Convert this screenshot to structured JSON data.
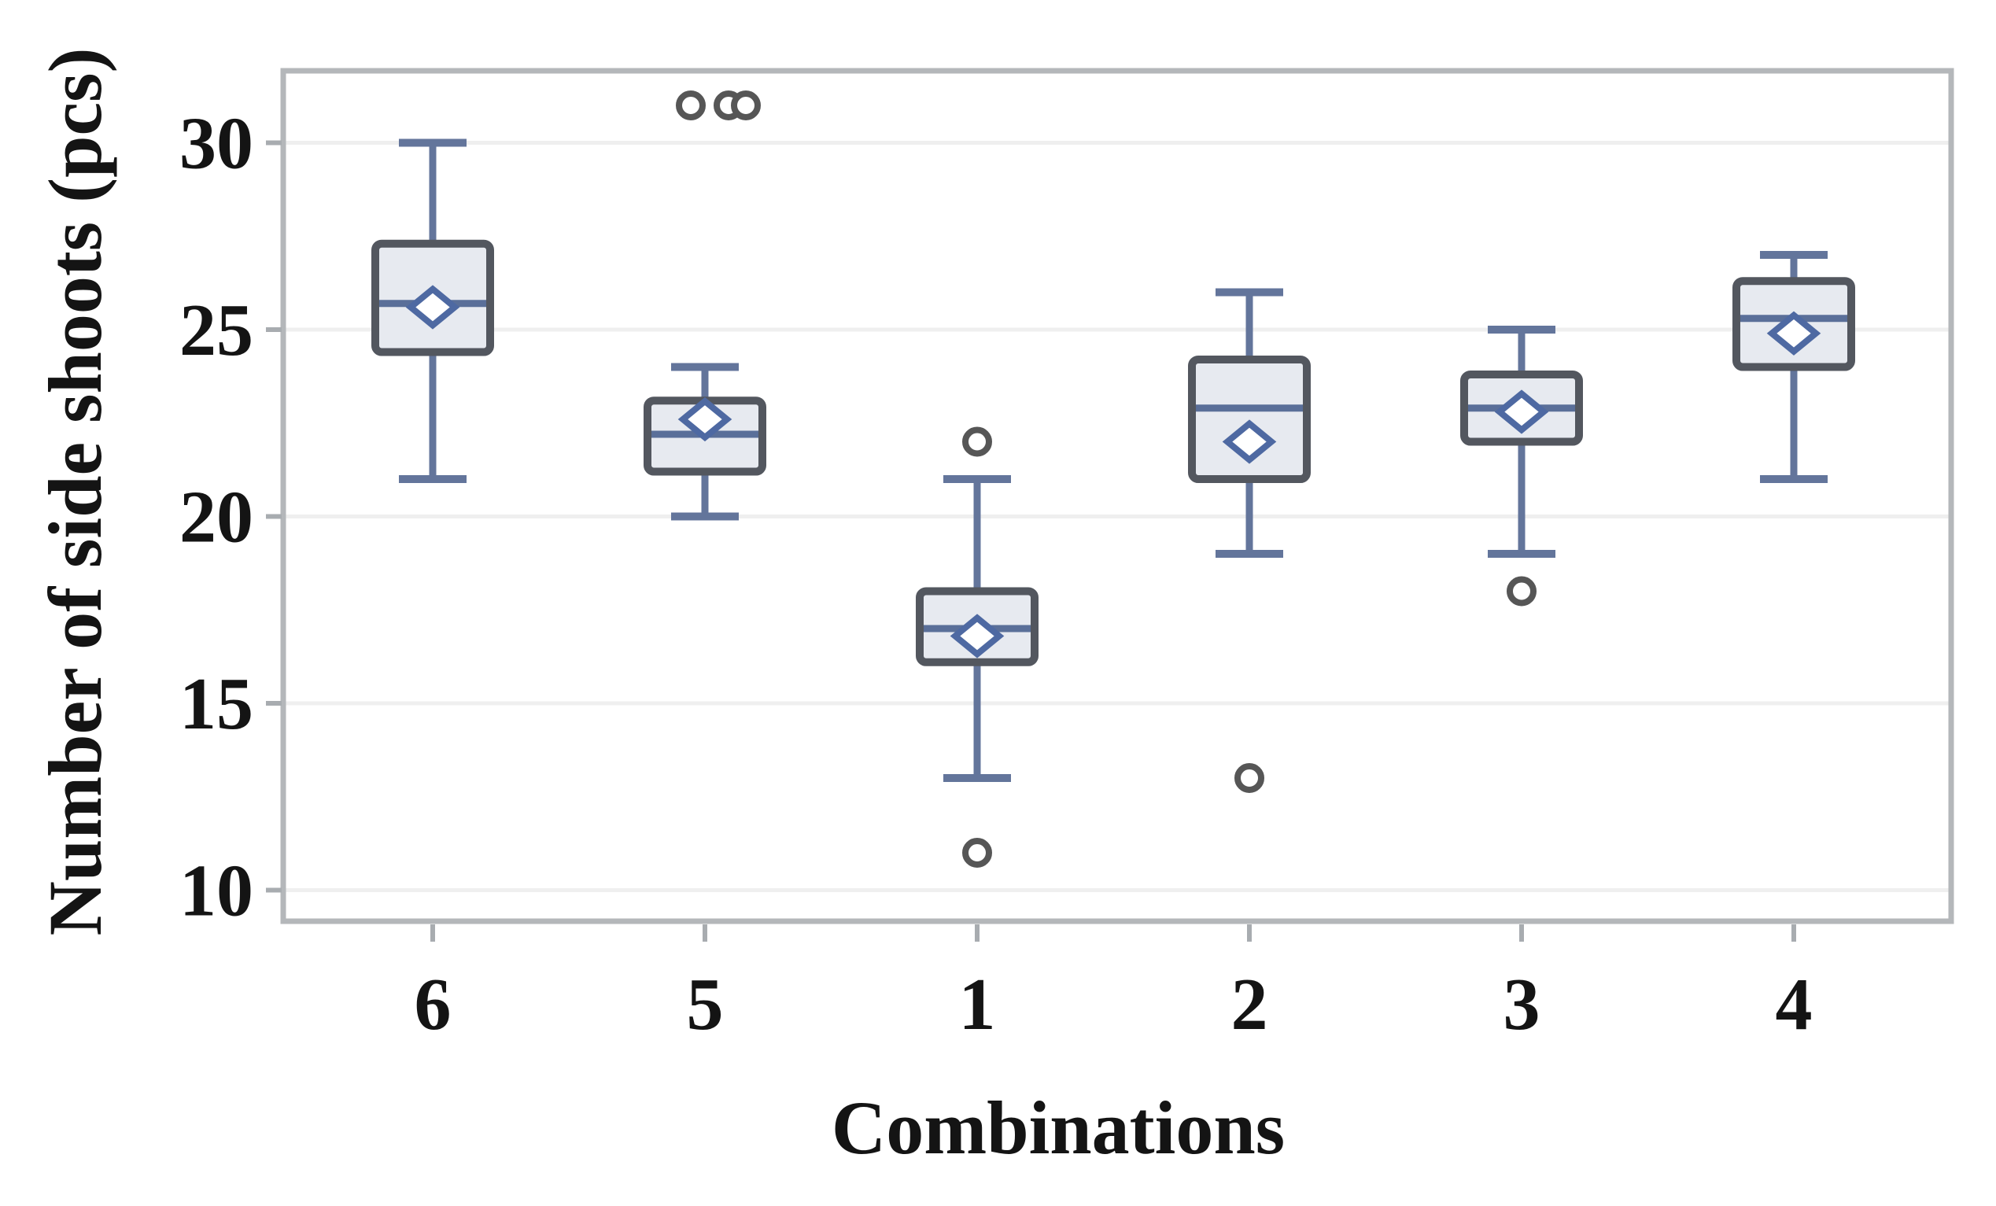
{
  "chart_data": {
    "type": "box",
    "title": "",
    "xlabel": "Combinations",
    "ylabel": "Number of side shoots (pcs)",
    "categories": [
      "6",
      "5",
      "1",
      "2",
      "3",
      "4"
    ],
    "yticks": [
      30,
      25,
      20,
      15,
      10
    ],
    "ylim": [
      9.2,
      31.9
    ],
    "grid": "horizontal",
    "legend": "none",
    "series": [
      {
        "category": "6",
        "whisker_low": 21,
        "q1": 24.4,
        "median": 25.7,
        "mean": 25.6,
        "q3": 27.3,
        "whisker_high": 30,
        "outliers": []
      },
      {
        "category": "5",
        "whisker_low": 20,
        "q1": 21.2,
        "median": 22.2,
        "mean": 22.6,
        "q3": 23.1,
        "whisker_high": 24,
        "outliers": [
          31,
          31,
          31
        ]
      },
      {
        "category": "1",
        "whisker_low": 13,
        "q1": 16.1,
        "median": 17,
        "mean": 16.8,
        "q3": 18,
        "whisker_high": 21,
        "outliers": [
          22,
          11
        ]
      },
      {
        "category": "2",
        "whisker_low": 19,
        "q1": 21,
        "median": 22.9,
        "mean": 22,
        "q3": 24.2,
        "whisker_high": 26,
        "outliers": [
          13
        ]
      },
      {
        "category": "3",
        "whisker_low": 19,
        "q1": 22,
        "median": 22.9,
        "mean": 22.8,
        "q3": 23.8,
        "whisker_high": 25,
        "outliers": [
          18
        ]
      },
      {
        "category": "4",
        "whisker_low": 21,
        "q1": 24,
        "median": 25.3,
        "mean": 24.9,
        "q3": 26.3,
        "whisker_high": 27,
        "outliers": []
      }
    ],
    "marker_semantics": {
      "diamond": "mean value marker",
      "circle": "outlier point"
    },
    "colors": {
      "box_fill": "#e7eaf0",
      "box_border": "#53575f",
      "whisker": "#63759b",
      "median": "#5a6f99",
      "mean_marker": "#4e69a2",
      "mean_marker_fill": "#ffffff",
      "outlier": "#565656",
      "outlier_fill": "#ffffff",
      "gridline": "#efefef",
      "frame": "#b4b7ba",
      "tick": "#a8acb0",
      "text": "#141414",
      "background": "#ffffff"
    }
  }
}
